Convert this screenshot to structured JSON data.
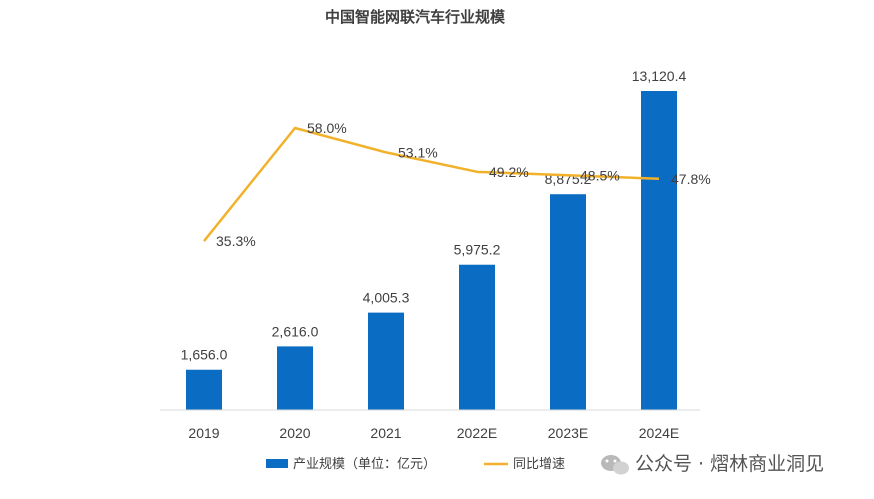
{
  "chart_data": {
    "type": "bar",
    "title": "中国智能网联汽车行业规模",
    "categories": [
      "2019",
      "2020",
      "2021",
      "2022E",
      "2023E",
      "2024E"
    ],
    "series": [
      {
        "name": "产业规模（单位：亿元）",
        "type": "bar",
        "values": [
          1656.0,
          2616.0,
          4005.3,
          5975.2,
          8875.2,
          13120.4
        ],
        "labels": [
          "1,656.0",
          "2,616.0",
          "4,005.3",
          "5,975.2",
          "8,875.2",
          "13,120.4"
        ],
        "color": "#0b6cc4"
      },
      {
        "name": "同比增速",
        "type": "line",
        "values": [
          35.3,
          58.0,
          53.1,
          49.2,
          48.5,
          47.8
        ],
        "labels": [
          "35.3%",
          "58.0%",
          "53.1%",
          "49.2%",
          "48.5%",
          "47.8%"
        ],
        "color": "#f2b12a"
      }
    ],
    "legend_position": "bottom",
    "grid": false
  },
  "watermark": {
    "text": "公众号 · 熠林商业洞见",
    "icon": "wechat-icon"
  }
}
